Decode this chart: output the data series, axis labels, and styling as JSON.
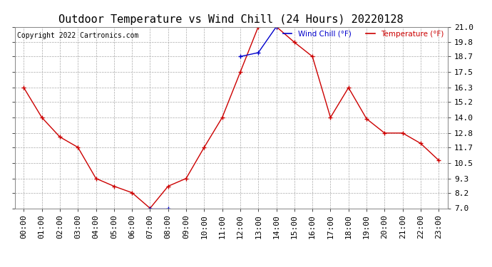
{
  "title": "Outdoor Temperature vs Wind Chill (24 Hours) 20220128",
  "copyright_text": "Copyright 2022 Cartronics.com",
  "legend_wind_chill": "Wind Chill (°F)",
  "legend_temperature": "Temperature (°F)",
  "x_labels": [
    "00:00",
    "01:00",
    "02:00",
    "03:00",
    "04:00",
    "05:00",
    "06:00",
    "07:00",
    "08:00",
    "09:00",
    "10:00",
    "11:00",
    "12:00",
    "13:00",
    "14:00",
    "15:00",
    "16:00",
    "17:00",
    "18:00",
    "19:00",
    "20:00",
    "21:00",
    "22:00",
    "23:00"
  ],
  "temperature_values": [
    16.3,
    14.0,
    12.5,
    11.7,
    9.3,
    8.7,
    8.2,
    7.0,
    8.7,
    9.3,
    11.7,
    14.0,
    17.5,
    21.0,
    21.0,
    19.8,
    18.7,
    14.0,
    16.3,
    13.9,
    12.8,
    12.8,
    12.0,
    10.7
  ],
  "wind_chill_values": [
    null,
    null,
    null,
    null,
    null,
    null,
    null,
    7.0,
    7.0,
    null,
    null,
    null,
    18.7,
    19.0,
    21.0,
    null,
    null,
    null,
    null,
    null,
    null,
    null,
    null,
    null
  ],
  "y_ticks": [
    7.0,
    8.2,
    9.3,
    10.5,
    11.7,
    12.8,
    14.0,
    15.2,
    16.3,
    17.5,
    18.7,
    19.8,
    21.0
  ],
  "y_min": 7.0,
  "y_max": 21.0,
  "temp_color": "#cc0000",
  "wind_chill_color": "#0000cc",
  "bg_color": "#ffffff",
  "grid_color": "#aaaaaa",
  "title_fontsize": 11,
  "label_fontsize": 8,
  "copyright_fontsize": 7
}
